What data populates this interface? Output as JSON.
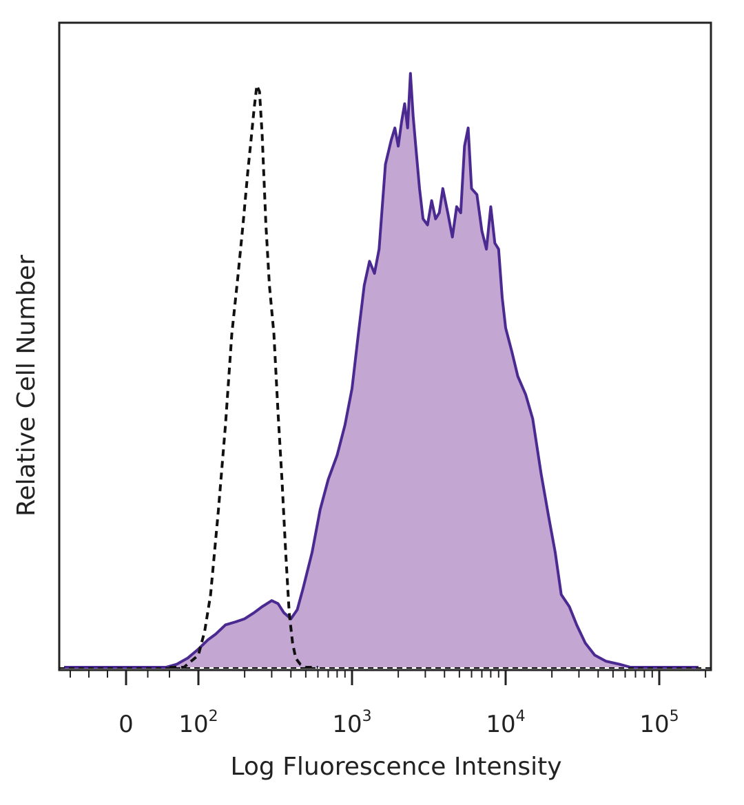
{
  "chart_data": {
    "type": "area",
    "title": "",
    "xlabel": "Log Fluorescence Intensity",
    "ylabel": "Relative Cell Number",
    "x_scale": "biexponential (log above 10^2)",
    "x_tick_labels": [
      {
        "value": 0,
        "base": "0",
        "exp": ""
      },
      {
        "value": 100,
        "base": "10",
        "exp": "2"
      },
      {
        "value": 1000,
        "base": "10",
        "exp": "3"
      },
      {
        "value": 10000,
        "base": "10",
        "exp": "4"
      },
      {
        "value": 100000,
        "base": "10",
        "exp": "5"
      }
    ],
    "ylim": [
      0,
      1
    ],
    "grid": false,
    "legend": "none",
    "colors": {
      "stained_line": "#4a2a91",
      "stained_fill": "#c4a6d2",
      "control_line": "#111111",
      "axis": "#222222"
    },
    "series": [
      {
        "style": "filled-solid",
        "x": [
          -100,
          55,
          70,
          85,
          100,
          115,
          130,
          150,
          175,
          200,
          230,
          260,
          300,
          330,
          360,
          400,
          440,
          480,
          550,
          620,
          700,
          800,
          900,
          1000,
          1100,
          1200,
          1300,
          1400,
          1500,
          1650,
          1800,
          1900,
          2000,
          2100,
          2200,
          2300,
          2400,
          2500,
          2600,
          2750,
          2900,
          3100,
          3300,
          3500,
          3700,
          3900,
          4200,
          4500,
          4800,
          5100,
          5400,
          5700,
          6000,
          6500,
          7000,
          7500,
          8000,
          8500,
          9000,
          9500,
          10000,
          11000,
          12000,
          13500,
          15000,
          17000,
          19000,
          21000,
          23000,
          26000,
          29000,
          33000,
          38000,
          45000,
          55000,
          65000,
          90000,
          180000
        ],
        "y": [
          0.0,
          0.0,
          0.005,
          0.015,
          0.03,
          0.045,
          0.055,
          0.07,
          0.075,
          0.08,
          0.09,
          0.1,
          0.11,
          0.105,
          0.09,
          0.08,
          0.095,
          0.13,
          0.19,
          0.26,
          0.31,
          0.35,
          0.4,
          0.46,
          0.55,
          0.63,
          0.67,
          0.65,
          0.69,
          0.83,
          0.87,
          0.89,
          0.86,
          0.9,
          0.93,
          0.89,
          0.98,
          0.91,
          0.86,
          0.79,
          0.74,
          0.73,
          0.77,
          0.74,
          0.75,
          0.79,
          0.75,
          0.71,
          0.76,
          0.75,
          0.86,
          0.89,
          0.79,
          0.78,
          0.72,
          0.69,
          0.76,
          0.7,
          0.69,
          0.61,
          0.56,
          0.52,
          0.48,
          0.45,
          0.41,
          0.32,
          0.25,
          0.19,
          0.12,
          0.1,
          0.07,
          0.04,
          0.02,
          0.01,
          0.005,
          0.0,
          0.0,
          0.0
        ]
      },
      {
        "style": "dashed-unfilled",
        "x": [
          60,
          80,
          100,
          110,
          120,
          135,
          150,
          165,
          180,
          195,
          210,
          220,
          230,
          240,
          250,
          260,
          275,
          290,
          310,
          330,
          350,
          370,
          390,
          410,
          430,
          460,
          500,
          550,
          600
        ],
        "y": [
          0.0,
          0.0,
          0.02,
          0.06,
          0.12,
          0.26,
          0.4,
          0.55,
          0.64,
          0.73,
          0.82,
          0.87,
          0.92,
          0.96,
          0.95,
          0.88,
          0.73,
          0.63,
          0.55,
          0.42,
          0.31,
          0.19,
          0.09,
          0.04,
          0.015,
          0.005,
          0.0,
          0.0,
          0.0
        ]
      }
    ]
  }
}
